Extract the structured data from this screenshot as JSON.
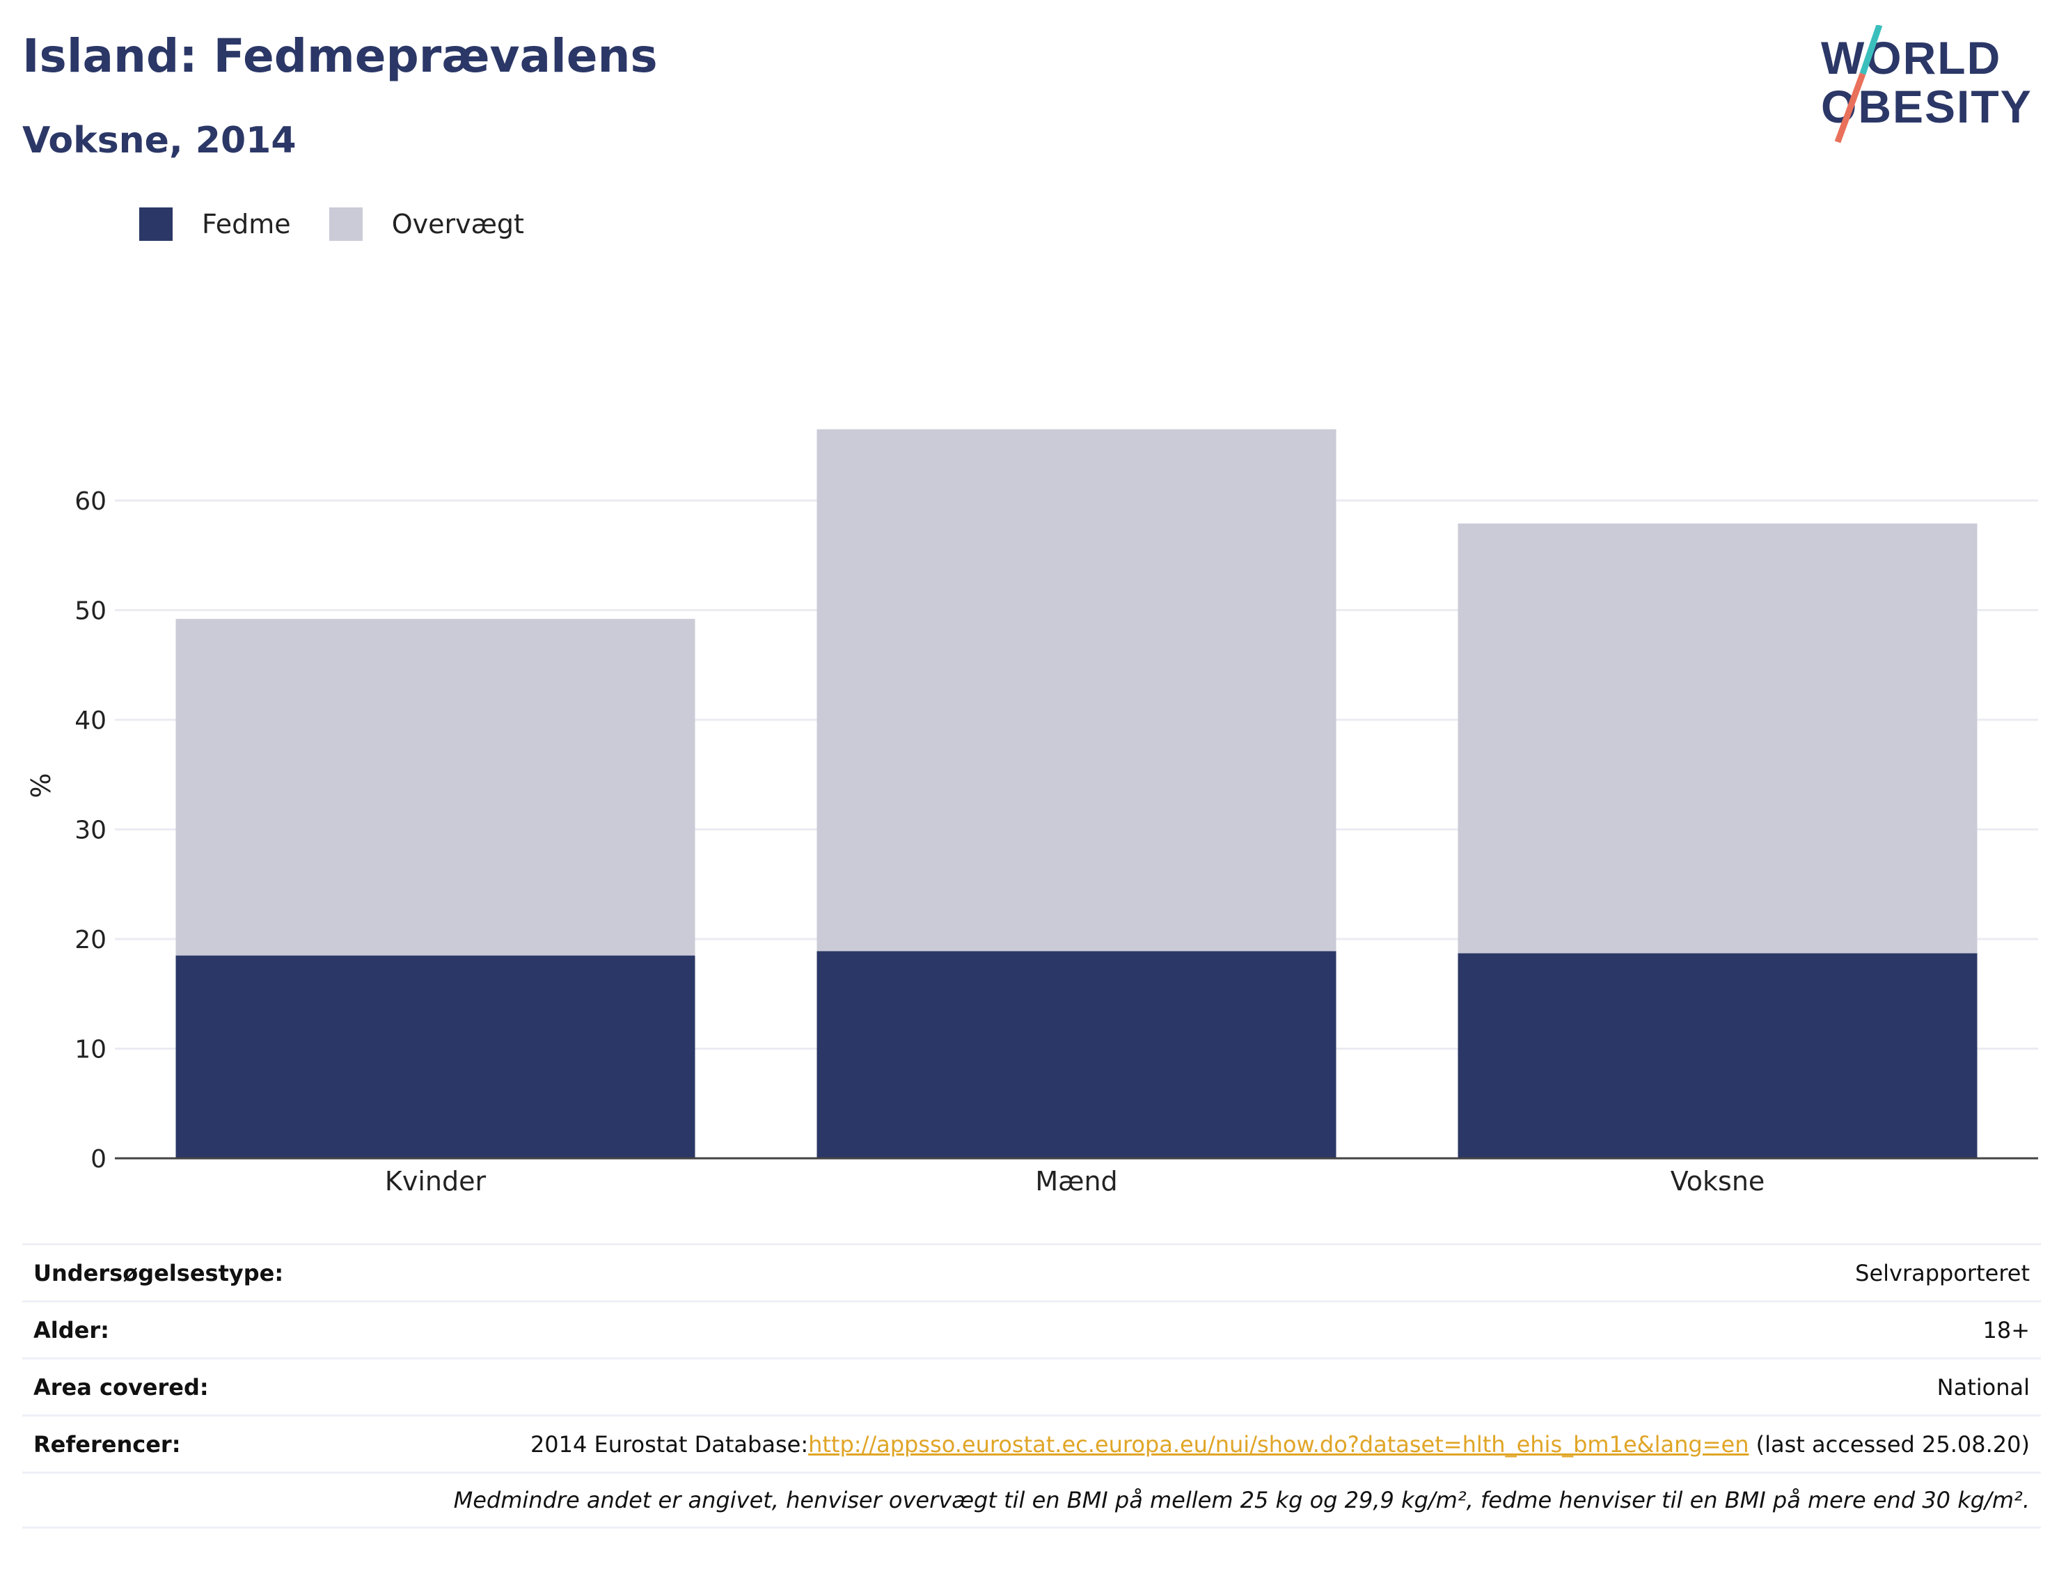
{
  "header": {
    "title": "Island: Fedmeprævalens",
    "subtitle": "Voksne, 2014"
  },
  "logo": {
    "line1": "WORLD",
    "line2": "OBESITY"
  },
  "colors": {
    "fedme": "#2b3766",
    "overvaegt": "#cacbd7",
    "accent_teal": "#3bbfbd",
    "accent_red": "#e9705a"
  },
  "chart_data": {
    "type": "bar",
    "stacked": true,
    "categories": [
      "Kvinder",
      "Mænd",
      "Voksne"
    ],
    "series": [
      {
        "name": "Fedme",
        "values": [
          18.5,
          18.9,
          18.7
        ]
      },
      {
        "name": "Overvægt",
        "values": [
          30.7,
          47.6,
          39.2
        ]
      }
    ],
    "ylabel": "%",
    "ylim": [
      0,
      72
    ],
    "yticks": [
      0,
      10,
      20,
      30,
      40,
      50,
      60
    ],
    "grid": true,
    "legend_position": "top-left"
  },
  "info": [
    {
      "key": "Undersøgelsestype:",
      "value": "Selvrapporteret"
    },
    {
      "key": "Alder:",
      "value": "18+"
    },
    {
      "key": "Area covered:",
      "value": "National"
    },
    {
      "key": "Referencer:",
      "value_prefix": "2014 Eurostat Database:",
      "link": "http://appsso.eurostat.ec.europa.eu/nui/show.do?dataset=hlth_ehis_bm1e&lang=en",
      "value_suffix": " (last accessed 25.08.20)"
    }
  ],
  "footnote": "Medmindre andet er angivet, henviser overvægt til en BMI på mellem 25 kg og 29,9 kg/m², fedme henviser til en BMI på mere end 30 kg/m²."
}
